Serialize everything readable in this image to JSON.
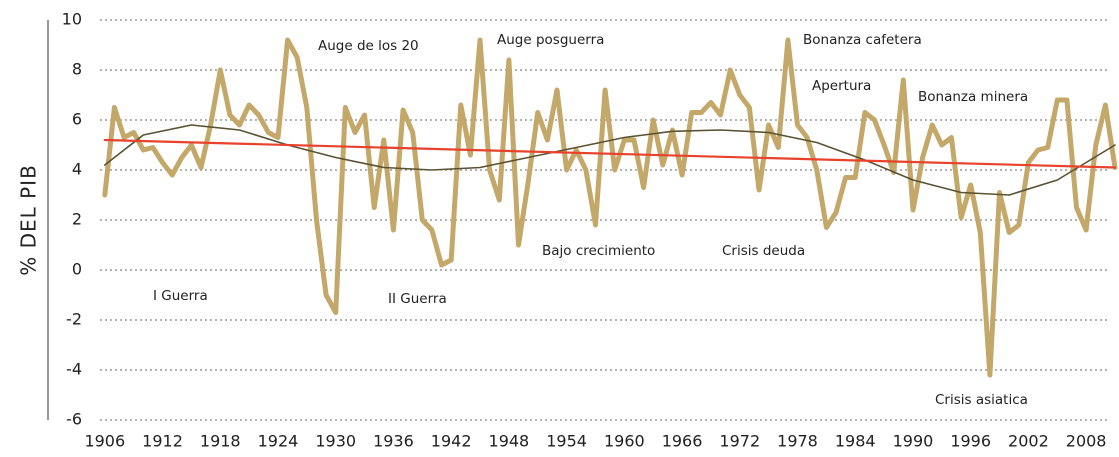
{
  "chart_data": {
    "type": "line",
    "ylabel": "% DEL PIB",
    "xlim": [
      1905.5,
      2011
    ],
    "ylim": [
      -6,
      10
    ],
    "xticks": [
      1906,
      1912,
      1918,
      1924,
      1930,
      1936,
      1942,
      1948,
      1954,
      1960,
      1966,
      1972,
      1978,
      1984,
      1990,
      1996,
      2002,
      2008
    ],
    "yticks": [
      -6,
      -4,
      -2,
      0,
      2,
      4,
      6,
      8,
      10
    ],
    "grid": true,
    "series": [
      {
        "color": "#c4a86a",
        "x": [
          1906,
          1907,
          1908,
          1909,
          1910,
          1911,
          1912,
          1913,
          1914,
          1915,
          1916,
          1917,
          1918,
          1919,
          1920,
          1921,
          1922,
          1923,
          1924,
          1925,
          1926,
          1927,
          1928,
          1929,
          1930,
          1931,
          1932,
          1933,
          1934,
          1935,
          1936,
          1937,
          1938,
          1939,
          1940,
          1941,
          1942,
          1943,
          1944,
          1945,
          1946,
          1947,
          1948,
          1949,
          1950,
          1951,
          1952,
          1953,
          1954,
          1955,
          1956,
          1957,
          1958,
          1959,
          1960,
          1961,
          1962,
          1963,
          1964,
          1965,
          1966,
          1967,
          1968,
          1969,
          1970,
          1971,
          1972,
          1973,
          1974,
          1975,
          1976,
          1977,
          1978,
          1979,
          1980,
          1981,
          1982,
          1983,
          1984,
          1985,
          1986,
          1987,
          1988,
          1989,
          1990,
          1991,
          1992,
          1993,
          1994,
          1995,
          1996,
          1997,
          1998,
          1999,
          2000,
          2001,
          2002,
          2003,
          2004,
          2005,
          2006,
          2007,
          2008,
          2009,
          2010,
          2011
        ],
        "values": [
          3,
          6.5,
          5.3,
          5.5,
          4.8,
          4.9,
          4.3,
          3.8,
          4.5,
          5,
          4.1,
          5.8,
          8,
          6.2,
          5.8,
          6.6,
          6.2,
          5.5,
          5.3,
          9.2,
          8.5,
          6.5,
          2,
          -1,
          -1.7,
          6.5,
          5.5,
          6.2,
          2.5,
          5.2,
          1.6,
          6.4,
          5.5,
          2,
          1.6,
          0.2,
          0.4,
          6.6,
          4.6,
          9.2,
          4,
          2.8,
          8.4,
          1,
          3.5,
          6.3,
          5.2,
          7.2,
          4,
          4.8,
          4,
          1.8,
          7.2,
          4,
          5.2,
          5.2,
          3.3,
          6,
          4.2,
          5.6,
          3.8,
          6.3,
          6.3,
          6.7,
          6.2,
          8,
          7,
          6.5,
          3.2,
          5.8,
          4.9,
          9.2,
          5.8,
          5.3,
          4,
          1.7,
          2.3,
          3.7,
          3.7,
          6.3,
          6,
          5,
          3.9,
          7.6,
          2.4,
          4.5,
          5.8,
          5,
          5.3,
          2.1,
          3.4,
          1.5,
          -4.2,
          3.1,
          1.5,
          1.8,
          4.3,
          4.8,
          4.9,
          6.8,
          6.8,
          2.5,
          1.6,
          5,
          6.6,
          4.1
        ]
      },
      {
        "color": "#5a5230",
        "x": [
          1906,
          1910,
          1915,
          1920,
          1925,
          1930,
          1935,
          1940,
          1945,
          1950,
          1955,
          1960,
          1965,
          1970,
          1975,
          1980,
          1985,
          1990,
          1995,
          2000,
          2005,
          2011
        ],
        "values": [
          4.2,
          5.4,
          5.8,
          5.6,
          5,
          4.5,
          4.1,
          4,
          4.1,
          4.5,
          4.9,
          5.3,
          5.55,
          5.6,
          5.5,
          5.1,
          4.4,
          3.6,
          3.1,
          3,
          3.6,
          5
        ]
      },
      {
        "color": "#e8412c",
        "x": [
          1906,
          2011
        ],
        "values": [
          5.2,
          4.1
        ]
      }
    ],
    "annotations": [
      "Auge de los 20",
      "Auge posguerra",
      "Bonanza cafetera",
      "Apertura",
      "Bonanza minera",
      "Bajo crecimiento",
      "Crisis deuda",
      "I Guerra",
      "II Guerra",
      "Crisis asiatica"
    ]
  }
}
